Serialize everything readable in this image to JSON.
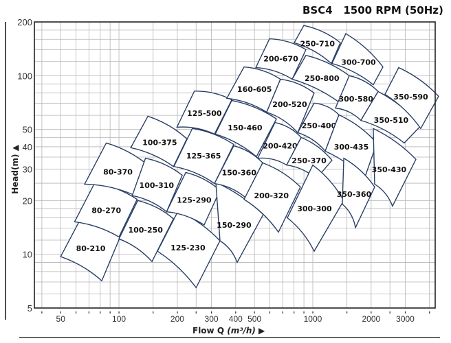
{
  "title": "BSC4   1500 RPM (50Hz)",
  "y_axis_label": "Head(m)",
  "x_axis_label": "Flow Q",
  "x_axis_unit": "(m³/h)",
  "chart_data": {
    "type": "area",
    "subtype": "pump selection tile chart",
    "x_scale": "log",
    "y_scale": "log",
    "xlim": [
      36.6,
      4280
    ],
    "ylim": [
      5,
      200
    ],
    "grid": true,
    "x_ticks": [
      50,
      100,
      200,
      300,
      400,
      500,
      1000,
      2000,
      3000
    ],
    "y_ticks": [
      5,
      10,
      20,
      30,
      40,
      50,
      100,
      200
    ],
    "line_color": "#2a3f66",
    "tiles": [
      {
        "label": "80-210",
        "corners": [
          [
            63,
            15.6
          ],
          [
            102,
            12.7
          ],
          [
            81.5,
            7.1
          ],
          [
            50,
            9.7
          ]
        ]
      },
      {
        "label": "80-270",
        "corners": [
          [
            75,
            25.1
          ],
          [
            124,
            20.3
          ],
          [
            100,
            12.5
          ],
          [
            59,
            15.2
          ]
        ]
      },
      {
        "label": "80-370",
        "corners": [
          [
            86,
            42
          ],
          [
            141,
            31.6
          ],
          [
            118,
            21.6
          ],
          [
            66.5,
            24.7
          ]
        ]
      },
      {
        "label": "100-250",
        "corners": [
          [
            125,
            20
          ],
          [
            191,
            15.8
          ],
          [
            148,
            9.1
          ],
          [
            100,
            12.2
          ]
        ]
      },
      {
        "label": "100-310",
        "corners": [
          [
            137,
            34.5
          ],
          [
            212,
            27.7
          ],
          [
            176,
            17.3
          ],
          [
            117,
            21.3
          ]
        ]
      },
      {
        "label": "100-375",
        "corners": [
          [
            141,
            59.3
          ],
          [
            224,
            44.3
          ],
          [
            191,
            31
          ],
          [
            115,
            39.5
          ]
        ]
      },
      {
        "label": "125-230",
        "corners": [
          [
            202,
            17.5
          ],
          [
            332,
            11.9
          ],
          [
            250,
            6.5
          ],
          [
            158,
            10.4
          ]
        ]
      },
      {
        "label": "125-290",
        "corners": [
          [
            221,
            28.7
          ],
          [
            332,
            22.8
          ],
          [
            275,
            14.6
          ],
          [
            176,
            17.3
          ]
        ]
      },
      {
        "label": "125-365",
        "corners": [
          [
            239,
            50.6
          ],
          [
            391,
            41.2
          ],
          [
            311,
            24.9
          ],
          [
            192,
            31
          ]
        ]
      },
      {
        "label": "125-500",
        "corners": [
          [
            245,
            82
          ],
          [
            382,
            73.3
          ],
          [
            311,
            47.1
          ],
          [
            199,
            51.5
          ]
        ]
      },
      {
        "label": "150-290",
        "corners": [
          [
            316,
            25.3
          ],
          [
            555,
            16.7
          ],
          [
            407,
            9.0
          ],
          [
            332,
            11.9
          ]
        ]
      },
      {
        "label": "150-360",
        "corners": [
          [
            391,
            40.5
          ],
          [
            551,
            32.5
          ],
          [
            449,
            20.8
          ],
          [
            311,
            24.9
          ]
        ]
      },
      {
        "label": "150-460",
        "corners": [
          [
            382,
            72.7
          ],
          [
            649,
            57.3
          ],
          [
            512,
            35.2
          ],
          [
            314,
            47.1
          ]
        ]
      },
      {
        "label": "160-605",
        "corners": [
          [
            442,
            112
          ],
          [
            681,
            95.6
          ],
          [
            578,
            62.5
          ],
          [
            360,
            74.7
          ]
        ]
      },
      {
        "label": "200-320",
        "corners": [
          [
            551,
            32.5
          ],
          [
            863,
            23.8
          ],
          [
            665,
            13.3
          ],
          [
            442,
            20.3
          ]
        ]
      },
      {
        "label": "200-420",
        "corners": [
          [
            638,
            54.7
          ],
          [
            871,
            45.1
          ],
          [
            733,
            31.6
          ],
          [
            520,
            34.5
          ]
        ]
      },
      {
        "label": "200-520",
        "corners": [
          [
            681,
            95.6
          ],
          [
            1016,
            80
          ],
          [
            836,
            48
          ],
          [
            578,
            62.5
          ]
        ]
      },
      {
        "label": "200-670",
        "corners": [
          [
            598,
            161
          ],
          [
            922,
            140
          ],
          [
            783,
            95.6
          ],
          [
            508,
            111
          ]
        ]
      },
      {
        "label": "250-370",
        "corners": [
          [
            871,
            45.1
          ],
          [
            1256,
            33.6
          ],
          [
            1042,
            26.5
          ],
          [
            733,
            31.6
          ]
        ]
      },
      {
        "label": "250-400",
        "corners": [
          [
            1016,
            70.2
          ],
          [
            1364,
            60.4
          ],
          [
            1159,
            37.8
          ],
          [
            836,
            48
          ]
        ]
      },
      {
        "label": "250-800",
        "corners": [
          [
            922,
            130
          ],
          [
            1542,
            100
          ],
          [
            1387,
            70.2
          ],
          [
            783,
            95.6
          ]
        ]
      },
      {
        "label": "250-710",
        "corners": [
          [
            899,
            191
          ],
          [
            1387,
            153
          ],
          [
            1247,
            117
          ],
          [
            802,
            153
          ]
        ]
      },
      {
        "label": "300-300",
        "corners": [
          [
            1000,
            31.6
          ],
          [
            1445,
            20
          ],
          [
            1016,
            10.4
          ],
          [
            739,
            16
          ]
        ]
      },
      {
        "label": "300-435",
        "corners": [
          [
            1364,
            60.4
          ],
          [
            2138,
            42
          ],
          [
            1845,
            26.5
          ],
          [
            1159,
            37.8
          ]
        ]
      },
      {
        "label": "300-580",
        "corners": [
          [
            1542,
            100
          ],
          [
            2173,
            81.6
          ],
          [
            1770,
            56.2
          ],
          [
            1309,
            65.9
          ]
        ]
      },
      {
        "label": "300-700",
        "corners": [
          [
            1480,
            172
          ],
          [
            2301,
            112
          ],
          [
            2051,
            89
          ],
          [
            1256,
            117
          ]
        ]
      },
      {
        "label": "350-360",
        "corners": [
          [
            1445,
            34.5
          ],
          [
            2085,
            23.8
          ],
          [
            1660,
            14.1
          ],
          [
            1420,
            19.1
          ]
        ]
      },
      {
        "label": "350-430",
        "corners": [
          [
            2051,
            50.6
          ],
          [
            3404,
            34
          ],
          [
            2577,
            18.6
          ],
          [
            2085,
            24.7
          ]
        ]
      },
      {
        "label": "350-510",
        "corners": [
          [
            2173,
            81.6
          ],
          [
            3631,
            52.8
          ],
          [
            2962,
            42
          ],
          [
            1770,
            56.2
          ]
        ]
      },
      {
        "label": "350-590",
        "corners": [
          [
            2774,
            111
          ],
          [
            4455,
            76.7
          ],
          [
            3605,
            50.6
          ],
          [
            2357,
            78.7
          ]
        ]
      }
    ]
  }
}
